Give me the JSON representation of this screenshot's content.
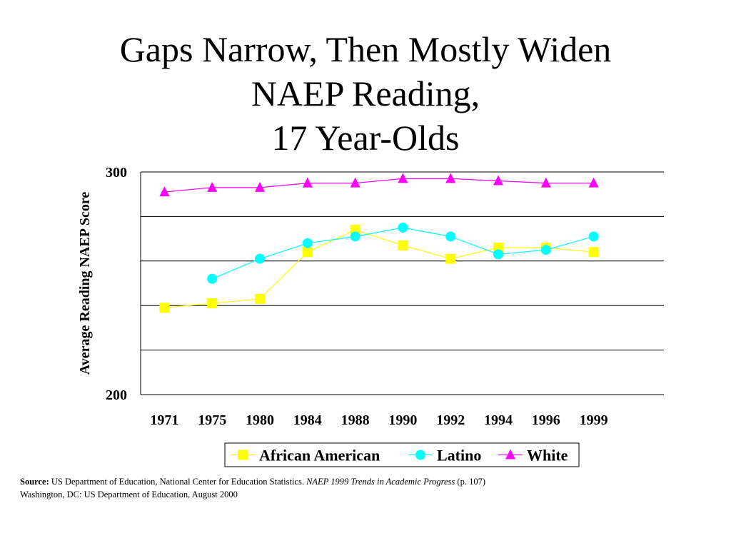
{
  "title_lines": [
    "Gaps Narrow, Then Mostly Widen",
    "NAEP Reading,",
    "17 Year-Olds"
  ],
  "source": {
    "label": "Source:",
    "text1": " US Department of Education, National Center for Education Statistics. ",
    "italic": "NAEP 1999 Trends in Academic Progress",
    "text2": " (p. 107)",
    "line2": "Washington, DC: US  Department of Education, August 2000"
  },
  "chart_data": {
    "type": "line",
    "title": "",
    "xlabel": "",
    "ylabel": "Average Reading NAEP Score",
    "categories": [
      "1971",
      "1975",
      "1980",
      "1984",
      "1988",
      "1990",
      "1992",
      "1994",
      "1996",
      "1999"
    ],
    "ylim": [
      200,
      300
    ],
    "ytick_labels": [
      "300",
      "200"
    ],
    "grid": true,
    "legend_position": "bottom",
    "series": [
      {
        "name": "African American",
        "marker": "square",
        "color": "#FFFF00",
        "values": [
          239,
          241,
          243,
          264,
          274,
          267,
          261,
          266,
          266,
          264
        ]
      },
      {
        "name": "Latino",
        "marker": "circle",
        "color": "#00FFFF",
        "values": [
          null,
          252,
          261,
          268,
          271,
          275,
          271,
          263,
          265,
          271
        ]
      },
      {
        "name": "White",
        "marker": "triangle",
        "color": "#FF00FF",
        "values": [
          291,
          293,
          293,
          295,
          295,
          297,
          297,
          296,
          295,
          295
        ]
      }
    ]
  }
}
